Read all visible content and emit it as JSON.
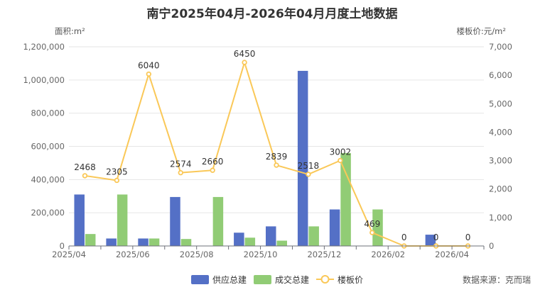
{
  "chart_data": {
    "type": "bar",
    "title": "南宁2025年04月-2026年04月月度土地数据",
    "y_left_label": "面积:m²",
    "y_right_label": "楼板价:元/m²",
    "y_left_ticks": [
      "0",
      "200,000",
      "400,000",
      "600,000",
      "800,000",
      "1,000,000",
      "1,200,000"
    ],
    "y_right_ticks": [
      "0",
      "1,000",
      "2,000",
      "3,000",
      "4,000",
      "5,000",
      "6,000",
      "7,000"
    ],
    "ylim_left": [
      0,
      1200000
    ],
    "ylim_right": [
      0,
      7000
    ],
    "x_tick_labels": [
      "2025/04",
      "2025/06",
      "2025/08",
      "2025/10",
      "2025/12",
      "2026/02",
      "2026/04"
    ],
    "categories": [
      "2025/04",
      "2025/05",
      "2025/06",
      "2025/07",
      "2025/08",
      "2025/09",
      "2025/10",
      "2025/11",
      "2025/12",
      "2026/01",
      "2026/02",
      "2026/03",
      "2026/04"
    ],
    "series": [
      {
        "name": "供应总建",
        "type": "bar",
        "axis": "left",
        "color": "#5470c6",
        "values": [
          310000,
          45000,
          45000,
          295000,
          0,
          80000,
          118000,
          1055000,
          220000,
          0,
          0,
          68000,
          0
        ]
      },
      {
        "name": "成交总建",
        "type": "bar",
        "axis": "left",
        "color": "#91cc75",
        "values": [
          72000,
          310000,
          45000,
          42000,
          295000,
          50000,
          32000,
          118000,
          560000,
          220000,
          0,
          0,
          0
        ]
      },
      {
        "name": "楼板价",
        "type": "line",
        "axis": "right",
        "color": "#fac858",
        "values": [
          2468,
          2305,
          6040,
          2574,
          2660,
          6450,
          2839,
          2518,
          3002,
          469,
          0,
          0,
          0
        ],
        "labels": [
          "2468",
          "2305",
          "6040",
          "2574",
          "2660",
          "6450",
          "2839",
          "2518",
          "3002",
          "469",
          "0",
          "0",
          "0"
        ]
      }
    ],
    "legend_position": "bottom-center",
    "grid": true
  },
  "source_text": "数据来源：克而瑞"
}
